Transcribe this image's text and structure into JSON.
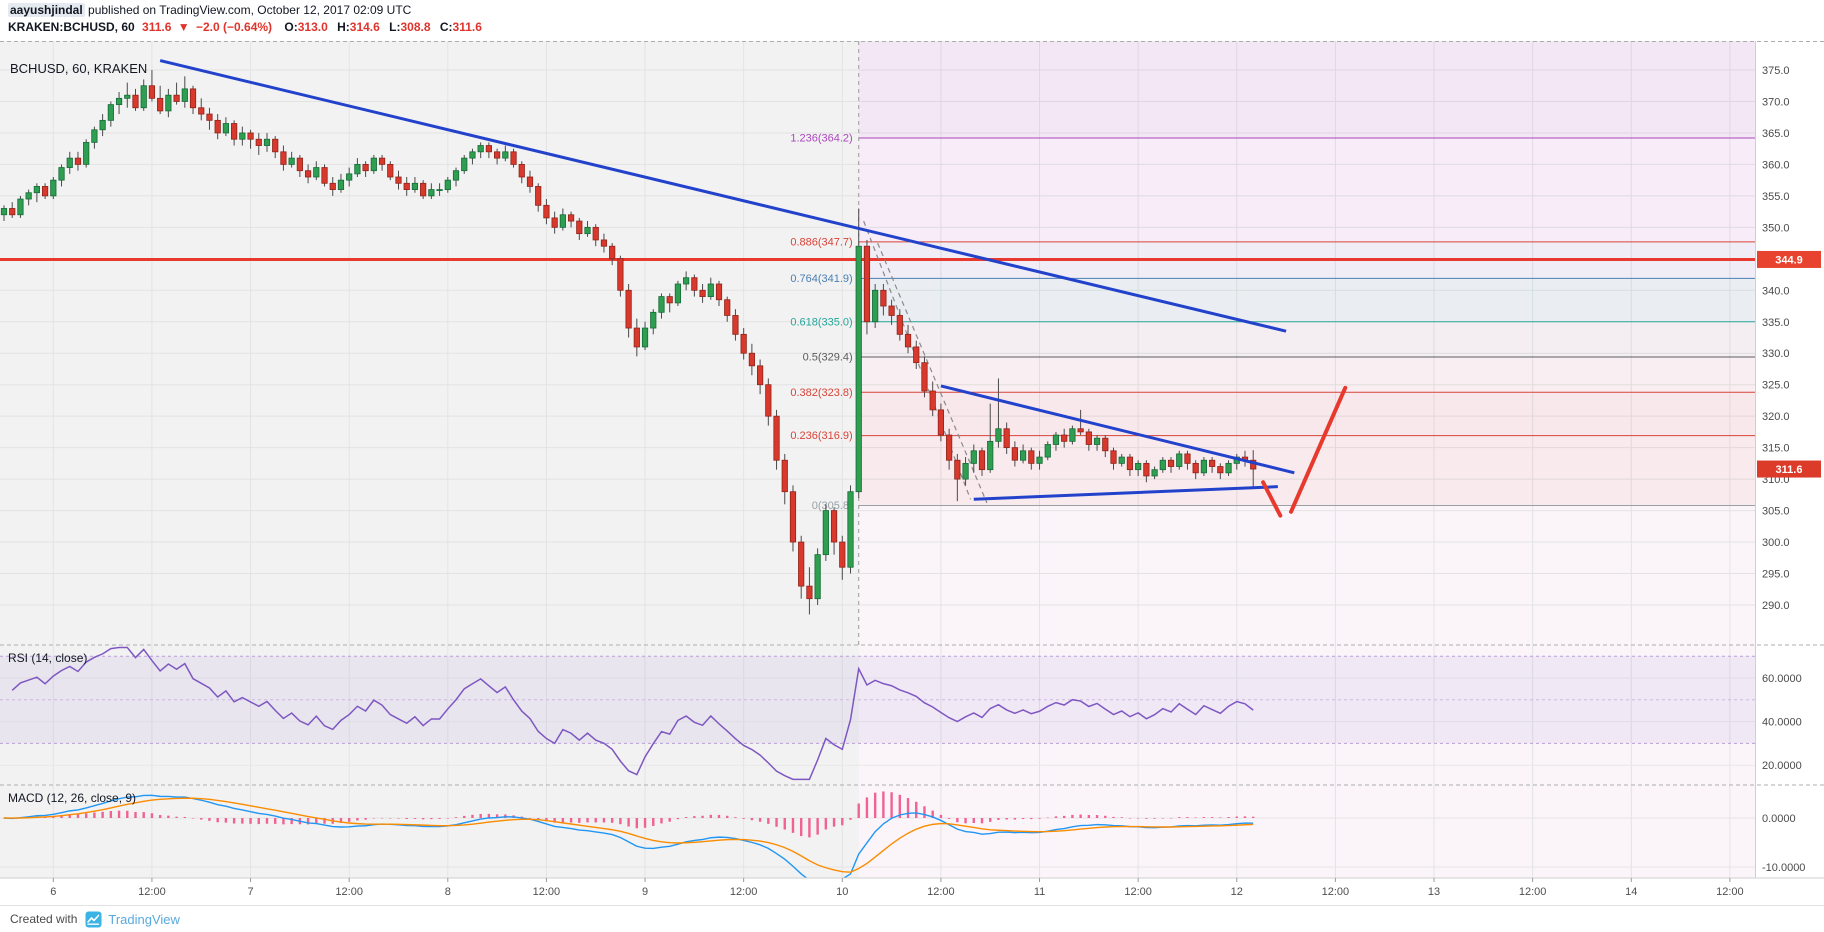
{
  "header": {
    "author": "aayushjindal",
    "published_text": " published on TradingView.com, October 12, 2017 02:09 UTC",
    "ticker": {
      "symbol": "KRAKEN:BCHUSD, 60",
      "last": "311.6",
      "direction": "▼",
      "change": "−2.0 (−0.64%)",
      "o_label": "O:",
      "o": "313.0",
      "h_label": "H:",
      "h": "314.6",
      "l_label": "L:",
      "l": "308.8",
      "c_label": "C:",
      "c": "311.6"
    }
  },
  "chart": {
    "legend": "BCHUSD, 60, KRAKEN"
  },
  "rsi_panel": {
    "label": "RSI (14, close)",
    "axis_values": [
      60,
      40,
      20
    ]
  },
  "macd_panel": {
    "label": "MACD (12, 26, close, 9)",
    "axis_values": [
      0,
      -10
    ]
  },
  "footer": {
    "created_with": "Created with",
    "brand": "TradingView"
  },
  "chart_data": {
    "type": "candlestick",
    "symbol": "BCHUSD",
    "exchange": "KRAKEN",
    "interval": "60",
    "price_axis": {
      "values": [
        375,
        370,
        365,
        360,
        355,
        350,
        340,
        335,
        330,
        325,
        320,
        315,
        310,
        305,
        300,
        295,
        290
      ],
      "last_price": 311.6,
      "alert_price": 344.9
    },
    "time_axis": [
      "6",
      "12:00",
      "7",
      "12:00",
      "8",
      "12:00",
      "9",
      "12:00",
      "10",
      "12:00",
      "11",
      "12:00",
      "12",
      "12:00",
      "13",
      "12:00",
      "14",
      "12:00"
    ],
    "fib_levels": [
      {
        "label": "1.236(364.2)",
        "price": 364.2,
        "color": "#ab47bc"
      },
      {
        "label": "0.886(347.7)",
        "price": 347.7,
        "color": "#d84339"
      },
      {
        "label": "0.764(341.9)",
        "price": 341.9,
        "color": "#4a7fb5"
      },
      {
        "label": "0.618(335.0)",
        "price": 335.0,
        "color": "#26a69a"
      },
      {
        "label": "0.5(329.4)",
        "price": 329.4,
        "color": "#5c5c5c"
      },
      {
        "label": "0.382(323.8)",
        "price": 323.8,
        "color": "#d84339"
      },
      {
        "label": "0.236(316.9)",
        "price": 316.9,
        "color": "#d84339"
      },
      {
        "label": "0(305.8)",
        "price": 305.8,
        "color": "#9aa0a6"
      }
    ],
    "fib_bands": [
      {
        "from": 364.2,
        "to": 380.0,
        "fill": "rgba(171,71,188,0.08)"
      },
      {
        "from": 347.7,
        "to": 364.2,
        "fill": "rgba(171,71,188,0.05)"
      },
      {
        "from": 341.9,
        "to": 347.7,
        "fill": "rgba(74,127,181,0.06)"
      },
      {
        "from": 335.0,
        "to": 341.9,
        "fill": "rgba(38,166,154,0.08)"
      },
      {
        "from": 329.4,
        "to": 335.0,
        "fill": "rgba(110,110,110,0.05)"
      },
      {
        "from": 323.8,
        "to": 329.4,
        "fill": "rgba(216,67,57,0.04)"
      },
      {
        "from": 316.9,
        "to": 323.8,
        "fill": "rgba(216,67,57,0.07)"
      },
      {
        "from": 305.8,
        "to": 316.9,
        "fill": "rgba(216,67,57,0.06)"
      }
    ],
    "trendlines": [
      {
        "name": "major-downtrend-line",
        "from": [
          19,
          376.5
        ],
        "to": [
          156,
          333.5
        ],
        "width": 3,
        "style": "solid"
      },
      {
        "name": "triangle-upper-line",
        "from": [
          114,
          324.8
        ],
        "to": [
          157,
          311.0
        ],
        "width": 3,
        "style": "solid"
      },
      {
        "name": "triangle-lower-line",
        "from": [
          118,
          306.8
        ],
        "to": [
          155,
          308.8
        ],
        "width": 3,
        "style": "solid"
      },
      {
        "name": "wedge-dashed-line-1",
        "from": [
          104.6,
          351.0
        ],
        "to": [
          117.6,
          306.8
        ],
        "width": 1.2,
        "style": "dashed"
      },
      {
        "name": "wedge-dashed-line-2",
        "from": [
          106.3,
          347.5
        ],
        "to": [
          119.6,
          306.2
        ],
        "width": 1.2,
        "style": "dashed"
      }
    ],
    "forecast": [
      {
        "points": [
          [
            153.2,
            309.5
          ],
          [
            155.3,
            304.2
          ]
        ]
      },
      {
        "points": [
          [
            156.6,
            304.8
          ],
          [
            163.2,
            324.5
          ]
        ]
      }
    ],
    "indicators": {
      "rsi": {
        "period": 14,
        "source": "close"
      },
      "macd": {
        "fast": 12,
        "slow": 26,
        "source": "close",
        "signal": 9
      }
    },
    "colors": {
      "up": "#2f9e50",
      "up_border": "#156b38",
      "down": "#d9382c",
      "down_border": "#8f241a",
      "wick": "#4a4a4a",
      "trend": "#2342cc",
      "dashed": "#8a8a8a",
      "forecast": "#e8392e",
      "rsi": "#7e57c2",
      "rsi_band": "rgba(149,117,205,0.10)",
      "macd": "#2196f3",
      "signal": "#fb8c00",
      "hist": "#f06292",
      "axis_text": "#4a4a4a",
      "badge_alert": "#e8432f",
      "badge_last": "#dd3b2a",
      "alert_line": "#e8392e"
    },
    "candles": [
      [
        352,
        353.5,
        351,
        353
      ],
      [
        353,
        354,
        351.5,
        352
      ],
      [
        352,
        355,
        351.5,
        354.5
      ],
      [
        354.5,
        356,
        353.5,
        355.5
      ],
      [
        355.5,
        357,
        354,
        356.5
      ],
      [
        356.5,
        357,
        354.5,
        355
      ],
      [
        355,
        358,
        354.5,
        357.5
      ],
      [
        357.5,
        360,
        356.5,
        359.5
      ],
      [
        359.5,
        362,
        358.5,
        361
      ],
      [
        361,
        362,
        359,
        360
      ],
      [
        360,
        364,
        359.5,
        363.5
      ],
      [
        363.5,
        366,
        362.5,
        365.5
      ],
      [
        365.5,
        368,
        364.5,
        367
      ],
      [
        367,
        370,
        366,
        369.5
      ],
      [
        369.5,
        371.5,
        368,
        370.5
      ],
      [
        370.5,
        373,
        369,
        371
      ],
      [
        371,
        372,
        368.5,
        369
      ],
      [
        369,
        373.5,
        368.5,
        372.5
      ],
      [
        372.5,
        375,
        370,
        370.5
      ],
      [
        370.5,
        372.5,
        368,
        368.5
      ],
      [
        368.5,
        372,
        367.5,
        371
      ],
      [
        371,
        373,
        369.5,
        370
      ],
      [
        370,
        374,
        369,
        372
      ],
      [
        372,
        372.5,
        368,
        369
      ],
      [
        369,
        370.5,
        367,
        368
      ],
      [
        368,
        369,
        365.5,
        367
      ],
      [
        367,
        368,
        364,
        365
      ],
      [
        365,
        367.5,
        364.5,
        366.5
      ],
      [
        366.5,
        367,
        363,
        364
      ],
      [
        364,
        366,
        363,
        365
      ],
      [
        365,
        365.5,
        362.5,
        364
      ],
      [
        364,
        365,
        361.5,
        363
      ],
      [
        363,
        365,
        362,
        364
      ],
      [
        364,
        364.5,
        361,
        362
      ],
      [
        362,
        363,
        359,
        360
      ],
      [
        360,
        362,
        359.5,
        361
      ],
      [
        361,
        361.5,
        358,
        359
      ],
      [
        359,
        360,
        357,
        358
      ],
      [
        358,
        360.5,
        357.5,
        359.5
      ],
      [
        359.5,
        360,
        356.5,
        357
      ],
      [
        357,
        358,
        355,
        356
      ],
      [
        356,
        358.5,
        355.5,
        357.5
      ],
      [
        357.5,
        359.5,
        356.5,
        358.5
      ],
      [
        358.5,
        361,
        358,
        360
      ],
      [
        360,
        360.5,
        358,
        359
      ],
      [
        359,
        361.5,
        358.5,
        361
      ],
      [
        361,
        361.5,
        359,
        360
      ],
      [
        360,
        360.5,
        357.5,
        358
      ],
      [
        358,
        359,
        356,
        357
      ],
      [
        357,
        358,
        355,
        356
      ],
      [
        356,
        358,
        355.5,
        357
      ],
      [
        357,
        357.5,
        354.5,
        355
      ],
      [
        355,
        357,
        354.5,
        356
      ],
      [
        356,
        357,
        355,
        356
      ],
      [
        356,
        358,
        355.5,
        357.5
      ],
      [
        357.5,
        359.5,
        356.5,
        359
      ],
      [
        359,
        361.5,
        358.5,
        361
      ],
      [
        361,
        362.5,
        360,
        362
      ],
      [
        362,
        363.5,
        361,
        363
      ],
      [
        363,
        363.5,
        361,
        362
      ],
      [
        362,
        362.5,
        360,
        361
      ],
      [
        361,
        363,
        360.5,
        362
      ],
      [
        362,
        362.5,
        359.5,
        360
      ],
      [
        360,
        360.5,
        357,
        358
      ],
      [
        358,
        359,
        355.5,
        356.5
      ],
      [
        356.5,
        357,
        352.5,
        353.5
      ],
      [
        353.5,
        354.5,
        350.5,
        351.5
      ],
      [
        351.5,
        352.5,
        349,
        350
      ],
      [
        350,
        353,
        349.5,
        352
      ],
      [
        352,
        352.5,
        350,
        351
      ],
      [
        351,
        351.5,
        348,
        349
      ],
      [
        349,
        351,
        348.5,
        350
      ],
      [
        350,
        350.5,
        347,
        348
      ],
      [
        348,
        349,
        346,
        347
      ],
      [
        347,
        347.5,
        344,
        345
      ],
      [
        345,
        345.5,
        339,
        340
      ],
      [
        340,
        341,
        332.5,
        334
      ],
      [
        334,
        335.5,
        329.5,
        331
      ],
      [
        331,
        335,
        330.5,
        334
      ],
      [
        334,
        337,
        333,
        336.5
      ],
      [
        336.5,
        339.5,
        335.5,
        339
      ],
      [
        339,
        339.5,
        336.5,
        338
      ],
      [
        338,
        341.5,
        337.5,
        341
      ],
      [
        341,
        343,
        340,
        342
      ],
      [
        342,
        342.5,
        339,
        340
      ],
      [
        340,
        341,
        338,
        339
      ],
      [
        339,
        342,
        338.5,
        341
      ],
      [
        341,
        341.5,
        337.5,
        338.5
      ],
      [
        338.5,
        339,
        335,
        336
      ],
      [
        336,
        337,
        332,
        333
      ],
      [
        333,
        334,
        329,
        330
      ],
      [
        330,
        331.5,
        326.5,
        328
      ],
      [
        328,
        329,
        323.5,
        325
      ],
      [
        325,
        326,
        318.5,
        320
      ],
      [
        320,
        321,
        311.5,
        313
      ],
      [
        313,
        314,
        306,
        308
      ],
      [
        308,
        309,
        298.5,
        300
      ],
      [
        300,
        301,
        291,
        293
      ],
      [
        293,
        296,
        288.5,
        291
      ],
      [
        291,
        299,
        290,
        298
      ],
      [
        298,
        306,
        297,
        305
      ],
      [
        305,
        305.5,
        298,
        300
      ],
      [
        300,
        301,
        294,
        296
      ],
      [
        296,
        309,
        295,
        308
      ],
      [
        308,
        353,
        307,
        347
      ],
      [
        347,
        348,
        333,
        335
      ],
      [
        335,
        341,
        334,
        340
      ],
      [
        340,
        341,
        336,
        337.5
      ],
      [
        337.5,
        338.5,
        334.5,
        336
      ],
      [
        336,
        337,
        332,
        333
      ],
      [
        333,
        334.5,
        330,
        331
      ],
      [
        331,
        332,
        327.5,
        328.5
      ],
      [
        328.5,
        329.5,
        323,
        324
      ],
      [
        324,
        325.5,
        320,
        321
      ],
      [
        321,
        322,
        316,
        317
      ],
      [
        317,
        318,
        311.5,
        313
      ],
      [
        313,
        314,
        306.5,
        310
      ],
      [
        310,
        313.5,
        309,
        312.5
      ],
      [
        312.5,
        315.5,
        311,
        314.5
      ],
      [
        314.5,
        315,
        310.5,
        311.5
      ],
      [
        311.5,
        322,
        311,
        316
      ],
      [
        316,
        326,
        315,
        318
      ],
      [
        318,
        319,
        314,
        315
      ],
      [
        315,
        316,
        312,
        313
      ],
      [
        313,
        315.5,
        312.5,
        314.5
      ],
      [
        314.5,
        315,
        311.5,
        312.5
      ],
      [
        312.5,
        314.5,
        311.5,
        313.5
      ],
      [
        313.5,
        316,
        313,
        315.5
      ],
      [
        315.5,
        317.5,
        314.5,
        317
      ],
      [
        317,
        318,
        315,
        316
      ],
      [
        316,
        318.5,
        315.5,
        318
      ],
      [
        318,
        321,
        317,
        317.5
      ],
      [
        317.5,
        318,
        314.5,
        315.5
      ],
      [
        315.5,
        317,
        314.5,
        316.5
      ],
      [
        316.5,
        317,
        313.5,
        314.5
      ],
      [
        314.5,
        315,
        311.5,
        312.5
      ],
      [
        312.5,
        314,
        312,
        313.5
      ],
      [
        313.5,
        314,
        310.5,
        311.5
      ],
      [
        311.5,
        313,
        310.5,
        312.5
      ],
      [
        312.5,
        313,
        309.5,
        310.5
      ],
      [
        310.5,
        312,
        310,
        311.5
      ],
      [
        311.5,
        313.5,
        311,
        313
      ],
      [
        313,
        313.5,
        311,
        312
      ],
      [
        312,
        314.5,
        311.5,
        314
      ],
      [
        314,
        314.5,
        311.5,
        312.5
      ],
      [
        312.5,
        313,
        310,
        311
      ],
      [
        311,
        313.5,
        310.5,
        313
      ],
      [
        313,
        313.5,
        311,
        312
      ],
      [
        312,
        312.5,
        310,
        311
      ],
      [
        311,
        313,
        310.5,
        312.5
      ],
      [
        312.5,
        314,
        311.5,
        313.5
      ],
      [
        313.5,
        314.5,
        312,
        313
      ],
      [
        313,
        314.6,
        308.8,
        311.6
      ]
    ]
  }
}
